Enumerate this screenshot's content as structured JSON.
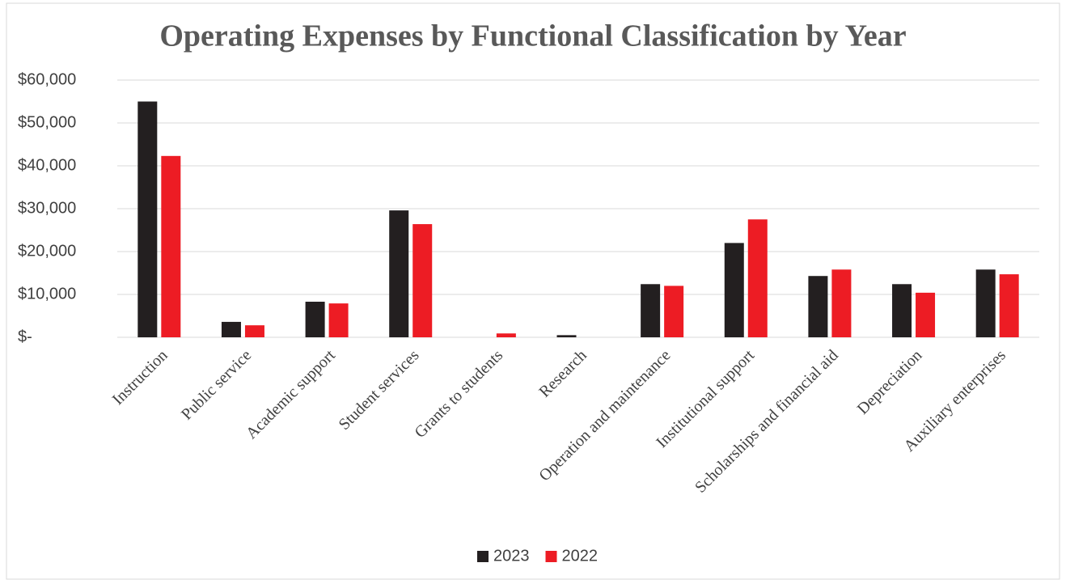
{
  "chart_data": {
    "type": "bar",
    "title": "Operating Expenses by Functional Classification by Year",
    "categories": [
      "Instruction",
      "Public service",
      "Academic support",
      "Student services",
      "Grants to students",
      "Research",
      "Operation and maintenance",
      "Institutional support",
      "Scholarships and financial aid",
      "Depreciation",
      "Auxiliary enterprises"
    ],
    "series": [
      {
        "name": "2023",
        "color": "#231f20",
        "values": [
          55000,
          3600,
          8300,
          29600,
          0,
          500,
          12400,
          22000,
          14300,
          12400,
          15800
        ]
      },
      {
        "name": "2022",
        "color": "#ed1c24",
        "values": [
          42300,
          2800,
          7900,
          26400,
          900,
          0,
          12000,
          27500,
          15800,
          10400,
          14700
        ]
      }
    ],
    "ylim": [
      0,
      60000
    ],
    "yticks": [
      {
        "value": 0,
        "label": "$-"
      },
      {
        "value": 10000,
        "label": "$10,000"
      },
      {
        "value": 20000,
        "label": "$20,000"
      },
      {
        "value": 30000,
        "label": "$30,000"
      },
      {
        "value": 40000,
        "label": "$40,000"
      },
      {
        "value": 50000,
        "label": "$50,000"
      },
      {
        "value": 60000,
        "label": "$60,000"
      }
    ],
    "grid": true,
    "legend": "bottom"
  }
}
